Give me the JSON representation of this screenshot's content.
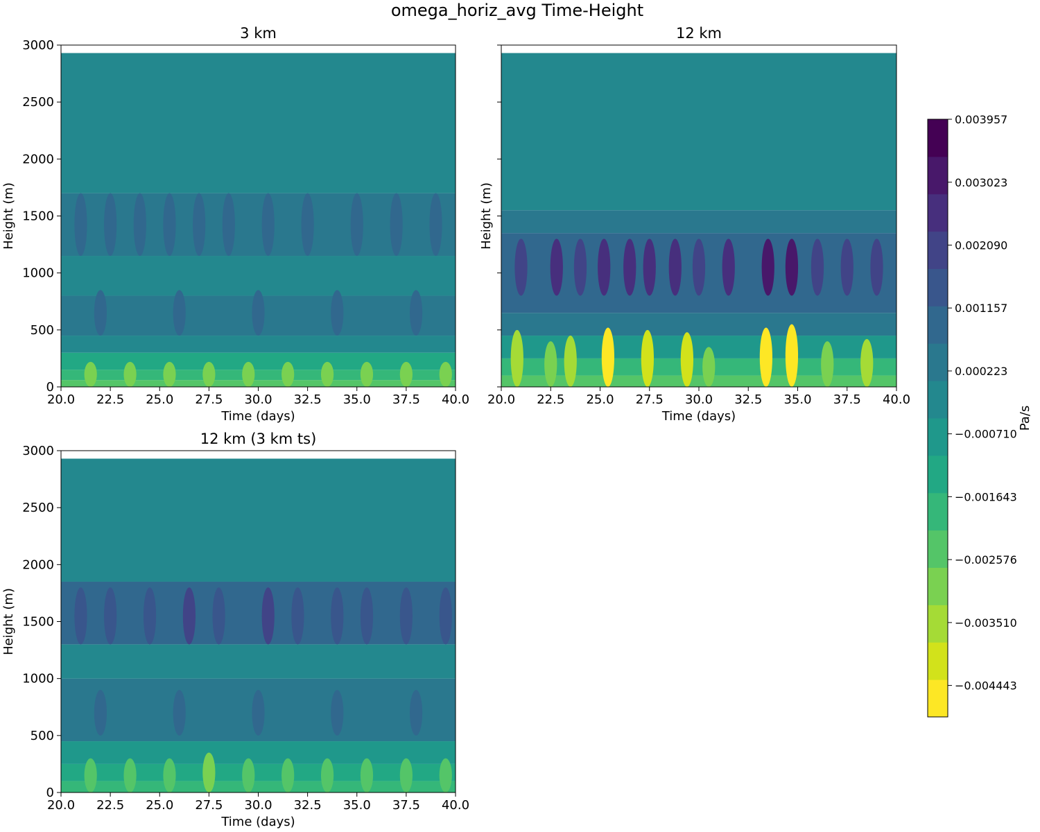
{
  "figure": {
    "title": "omega_horiz_avg Time-Height"
  },
  "chart_data": [
    {
      "type": "heatmap",
      "title": "3 km",
      "xlabel": "Time (days)",
      "ylabel": "Height (m)",
      "xlim": [
        20.0,
        40.0
      ],
      "ylim": [
        0,
        3000
      ],
      "xticks": [
        "20.0",
        "22.5",
        "25.0",
        "27.5",
        "30.0",
        "32.5",
        "35.0",
        "37.5",
        "40.0"
      ],
      "yticks": [
        "0",
        "500",
        "1000",
        "1500",
        "2000",
        "2500",
        "3000"
      ],
      "data_top_height": 2930,
      "bands": [
        {
          "h0": 0,
          "h1": 60,
          "level": -0.0023
        },
        {
          "h0": 60,
          "h1": 150,
          "level": -0.0018
        },
        {
          "h0": 150,
          "h1": 300,
          "level": -0.0011
        },
        {
          "h0": 300,
          "h1": 450,
          "level": -0.0003
        },
        {
          "h0": 450,
          "h1": 800,
          "level": 0.0004
        },
        {
          "h0": 800,
          "h1": 1150,
          "level": -0.0002
        },
        {
          "h0": 1150,
          "h1": 1700,
          "level": 0.0006
        },
        {
          "h0": 1700,
          "h1": 2930,
          "level": -0.0004
        }
      ],
      "cells": [
        {
          "t": 21.0,
          "h0": 1150,
          "h1": 1700,
          "level": 0.0011
        },
        {
          "t": 22.5,
          "h0": 1150,
          "h1": 1700,
          "level": 0.0011
        },
        {
          "t": 24.0,
          "h0": 1150,
          "h1": 1700,
          "level": 0.0011
        },
        {
          "t": 25.5,
          "h0": 1150,
          "h1": 1700,
          "level": 0.0011
        },
        {
          "t": 27.0,
          "h0": 1150,
          "h1": 1700,
          "level": 0.0011
        },
        {
          "t": 28.5,
          "h0": 1150,
          "h1": 1700,
          "level": 0.0011
        },
        {
          "t": 30.5,
          "h0": 1150,
          "h1": 1700,
          "level": 0.0011
        },
        {
          "t": 32.5,
          "h0": 1150,
          "h1": 1700,
          "level": 0.0011
        },
        {
          "t": 35.0,
          "h0": 1150,
          "h1": 1700,
          "level": 0.0011
        },
        {
          "t": 37.0,
          "h0": 1150,
          "h1": 1700,
          "level": 0.0011
        },
        {
          "t": 39.0,
          "h0": 1150,
          "h1": 1700,
          "level": 0.0011
        },
        {
          "t": 22.0,
          "h0": 450,
          "h1": 850,
          "level": 0.0009
        },
        {
          "t": 26.0,
          "h0": 450,
          "h1": 850,
          "level": 0.0009
        },
        {
          "t": 30.0,
          "h0": 450,
          "h1": 850,
          "level": 0.0009
        },
        {
          "t": 34.0,
          "h0": 450,
          "h1": 850,
          "level": 0.0009
        },
        {
          "t": 38.0,
          "h0": 450,
          "h1": 850,
          "level": 0.0009
        },
        {
          "t": 21.5,
          "h0": 0,
          "h1": 220,
          "level": -0.0027
        },
        {
          "t": 23.5,
          "h0": 0,
          "h1": 220,
          "level": -0.0027
        },
        {
          "t": 25.5,
          "h0": 0,
          "h1": 220,
          "level": -0.0027
        },
        {
          "t": 27.5,
          "h0": 0,
          "h1": 220,
          "level": -0.0027
        },
        {
          "t": 29.5,
          "h0": 0,
          "h1": 220,
          "level": -0.0027
        },
        {
          "t": 31.5,
          "h0": 0,
          "h1": 220,
          "level": -0.0027
        },
        {
          "t": 33.5,
          "h0": 0,
          "h1": 220,
          "level": -0.0027
        },
        {
          "t": 35.5,
          "h0": 0,
          "h1": 220,
          "level": -0.0027
        },
        {
          "t": 37.5,
          "h0": 0,
          "h1": 220,
          "level": -0.0027
        },
        {
          "t": 39.5,
          "h0": 0,
          "h1": 220,
          "level": -0.0027
        }
      ]
    },
    {
      "type": "heatmap",
      "title": "12 km",
      "xlabel": "Time (days)",
      "ylabel": "Height (m)",
      "xlim": [
        20.0,
        40.0
      ],
      "ylim": [
        0,
        3000
      ],
      "xticks": [
        "20.0",
        "22.5",
        "25.0",
        "27.5",
        "30.0",
        "32.5",
        "35.0",
        "37.5",
        "40.0"
      ],
      "yticks": [],
      "data_top_height": 2930,
      "bands": [
        {
          "h0": 0,
          "h1": 100,
          "level": -0.0024
        },
        {
          "h0": 100,
          "h1": 250,
          "level": -0.0017
        },
        {
          "h0": 250,
          "h1": 450,
          "level": -0.0009
        },
        {
          "h0": 450,
          "h1": 650,
          "level": 0.0001
        },
        {
          "h0": 650,
          "h1": 1350,
          "level": 0.001
        },
        {
          "h0": 1350,
          "h1": 1550,
          "level": 0.0003
        },
        {
          "h0": 1550,
          "h1": 2930,
          "level": -0.0004
        }
      ],
      "cells": [
        {
          "t": 20.8,
          "h0": 0,
          "h1": 500,
          "level": -0.0033
        },
        {
          "t": 22.5,
          "h0": 0,
          "h1": 400,
          "level": -0.0031
        },
        {
          "t": 23.5,
          "h0": 0,
          "h1": 450,
          "level": -0.0033
        },
        {
          "t": 25.4,
          "h0": 0,
          "h1": 520,
          "level": -0.0049
        },
        {
          "t": 27.4,
          "h0": 0,
          "h1": 500,
          "level": -0.004
        },
        {
          "t": 29.4,
          "h0": 0,
          "h1": 480,
          "level": -0.004
        },
        {
          "t": 30.5,
          "h0": 0,
          "h1": 350,
          "level": -0.003
        },
        {
          "t": 33.4,
          "h0": 0,
          "h1": 520,
          "level": -0.0047
        },
        {
          "t": 34.7,
          "h0": 0,
          "h1": 550,
          "level": -0.0046
        },
        {
          "t": 36.5,
          "h0": 0,
          "h1": 400,
          "level": -0.0031
        },
        {
          "t": 38.5,
          "h0": 0,
          "h1": 420,
          "level": -0.0033
        },
        {
          "t": 21.0,
          "h0": 800,
          "h1": 1300,
          "level": 0.002
        },
        {
          "t": 22.8,
          "h0": 800,
          "h1": 1300,
          "level": 0.0025
        },
        {
          "t": 24.0,
          "h0": 800,
          "h1": 1300,
          "level": 0.0022
        },
        {
          "t": 25.2,
          "h0": 800,
          "h1": 1300,
          "level": 0.0027
        },
        {
          "t": 26.5,
          "h0": 800,
          "h1": 1300,
          "level": 0.0023
        },
        {
          "t": 27.5,
          "h0": 800,
          "h1": 1300,
          "level": 0.0026
        },
        {
          "t": 28.8,
          "h0": 800,
          "h1": 1300,
          "level": 0.0025
        },
        {
          "t": 30.0,
          "h0": 800,
          "h1": 1300,
          "level": 0.0022
        },
        {
          "t": 31.5,
          "h0": 800,
          "h1": 1300,
          "level": 0.0023
        },
        {
          "t": 33.5,
          "h0": 800,
          "h1": 1300,
          "level": 0.0034
        },
        {
          "t": 34.7,
          "h0": 800,
          "h1": 1300,
          "level": 0.003
        },
        {
          "t": 36.0,
          "h0": 800,
          "h1": 1300,
          "level": 0.0022
        },
        {
          "t": 37.5,
          "h0": 800,
          "h1": 1300,
          "level": 0.0022
        },
        {
          "t": 39.0,
          "h0": 800,
          "h1": 1300,
          "level": 0.002
        }
      ]
    },
    {
      "type": "heatmap",
      "title": "12 km (3 km ts)",
      "xlabel": "Time (days)",
      "ylabel": "Height (m)",
      "xlim": [
        20.0,
        40.0
      ],
      "ylim": [
        0,
        3000
      ],
      "xticks": [
        "20.0",
        "22.5",
        "25.0",
        "27.5",
        "30.0",
        "32.5",
        "35.0",
        "37.5",
        "40.0"
      ],
      "yticks": [
        "0",
        "500",
        "1000",
        "1500",
        "2000",
        "2500",
        "3000"
      ],
      "data_top_height": 2930,
      "bands": [
        {
          "h0": 0,
          "h1": 100,
          "level": -0.0019
        },
        {
          "h0": 100,
          "h1": 250,
          "level": -0.0013
        },
        {
          "h0": 250,
          "h1": 450,
          "level": -0.0007
        },
        {
          "h0": 450,
          "h1": 1000,
          "level": 0.0002
        },
        {
          "h0": 1000,
          "h1": 1300,
          "level": -0.0001
        },
        {
          "h0": 1300,
          "h1": 1850,
          "level": 0.0007
        },
        {
          "h0": 1850,
          "h1": 2930,
          "level": -0.0004
        }
      ],
      "cells": [
        {
          "t": 21.0,
          "h0": 1300,
          "h1": 1800,
          "level": 0.0015
        },
        {
          "t": 22.5,
          "h0": 1300,
          "h1": 1800,
          "level": 0.0015
        },
        {
          "t": 24.5,
          "h0": 1300,
          "h1": 1800,
          "level": 0.0015
        },
        {
          "t": 26.5,
          "h0": 1300,
          "h1": 1800,
          "level": 0.0019
        },
        {
          "t": 28.0,
          "h0": 1300,
          "h1": 1800,
          "level": 0.0017
        },
        {
          "t": 30.5,
          "h0": 1300,
          "h1": 1800,
          "level": 0.0019
        },
        {
          "t": 32.0,
          "h0": 1300,
          "h1": 1800,
          "level": 0.0015
        },
        {
          "t": 34.0,
          "h0": 1300,
          "h1": 1800,
          "level": 0.0017
        },
        {
          "t": 35.5,
          "h0": 1300,
          "h1": 1800,
          "level": 0.0017
        },
        {
          "t": 37.5,
          "h0": 1300,
          "h1": 1800,
          "level": 0.0015
        },
        {
          "t": 39.5,
          "h0": 1300,
          "h1": 1800,
          "level": 0.0015
        },
        {
          "t": 22.0,
          "h0": 500,
          "h1": 900,
          "level": 0.0007
        },
        {
          "t": 26.0,
          "h0": 500,
          "h1": 900,
          "level": 0.0007
        },
        {
          "t": 30.0,
          "h0": 500,
          "h1": 900,
          "level": 0.0007
        },
        {
          "t": 34.0,
          "h0": 500,
          "h1": 900,
          "level": 0.0007
        },
        {
          "t": 38.0,
          "h0": 500,
          "h1": 900,
          "level": 0.0007
        },
        {
          "t": 21.5,
          "h0": 0,
          "h1": 300,
          "level": -0.0025
        },
        {
          "t": 23.5,
          "h0": 0,
          "h1": 300,
          "level": -0.0025
        },
        {
          "t": 25.5,
          "h0": 0,
          "h1": 300,
          "level": -0.0025
        },
        {
          "t": 27.5,
          "h0": 0,
          "h1": 350,
          "level": -0.0029
        },
        {
          "t": 29.5,
          "h0": 0,
          "h1": 300,
          "level": -0.0025
        },
        {
          "t": 31.5,
          "h0": 0,
          "h1": 300,
          "level": -0.0025
        },
        {
          "t": 33.5,
          "h0": 0,
          "h1": 300,
          "level": -0.0025
        },
        {
          "t": 35.5,
          "h0": 0,
          "h1": 300,
          "level": -0.0025
        },
        {
          "t": 37.5,
          "h0": 0,
          "h1": 300,
          "level": -0.0025
        },
        {
          "t": 39.5,
          "h0": 0,
          "h1": 300,
          "level": -0.0025
        }
      ]
    }
  ],
  "colorbar": {
    "label": "Pa/s",
    "vmin": -0.00491,
    "vmax": 0.003957,
    "ticks": [
      {
        "value": 0.003957,
        "label": "0.003957"
      },
      {
        "value": 0.003023,
        "label": "0.003023"
      },
      {
        "value": 0.00209,
        "label": "0.002090"
      },
      {
        "value": 0.001157,
        "label": "0.001157"
      },
      {
        "value": 0.000223,
        "label": "0.000223"
      },
      {
        "value": -0.00071,
        "label": "−0.000710"
      },
      {
        "value": -0.001643,
        "label": "−0.001643"
      },
      {
        "value": -0.002576,
        "label": "−0.002576"
      },
      {
        "value": -0.00351,
        "label": "−0.003510"
      },
      {
        "value": -0.004443,
        "label": "−0.004443"
      }
    ],
    "colors": [
      "#fde725",
      "#d2e21b",
      "#a5db36",
      "#7ad151",
      "#54c568",
      "#35b779",
      "#22a884",
      "#1f988b",
      "#23888e",
      "#2a788e",
      "#31688e",
      "#39568c",
      "#414487",
      "#472f7d",
      "#48186a",
      "#440154"
    ]
  }
}
